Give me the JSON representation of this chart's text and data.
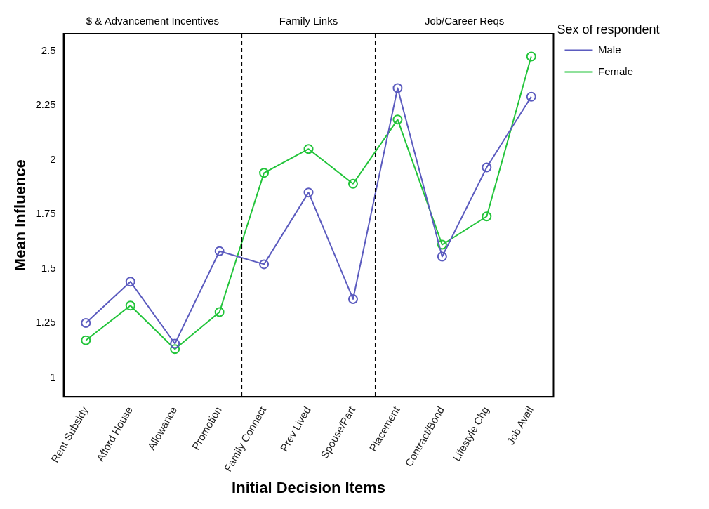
{
  "chart_data": {
    "type": "line",
    "xlabel": "Initial Decision Items",
    "ylabel": "Mean Influence",
    "legend_title": "Sex of respondent",
    "categories": [
      "Rent Subsidy",
      "Afford House",
      "Allowance",
      "Promotion",
      "Family Connect",
      "Prev Lived",
      "Spouse/Part",
      "Placement",
      "Contract/Bond",
      "Lifestyle Chg",
      "Job Avail"
    ],
    "series": [
      {
        "name": "Male",
        "color": "#5b5bbf",
        "values": [
          1.25,
          1.44,
          1.155,
          1.58,
          1.52,
          1.85,
          1.36,
          2.33,
          1.555,
          1.965,
          2.29
        ]
      },
      {
        "name": "Female",
        "color": "#22c43a",
        "values": [
          1.17,
          1.33,
          1.13,
          1.3,
          1.94,
          2.05,
          1.89,
          2.185,
          1.61,
          1.74,
          2.475
        ]
      }
    ],
    "ylim": [
      0.91,
      2.58
    ],
    "yticks": [
      1,
      1.25,
      1.5,
      1.75,
      2,
      2.25,
      2.5
    ],
    "annotations": [
      "$ & Advancement Incentives",
      "Family Links",
      "Job/Career Reqs"
    ],
    "grid": false,
    "legend": "top right",
    "marker": "circle",
    "line_style": "solid"
  }
}
